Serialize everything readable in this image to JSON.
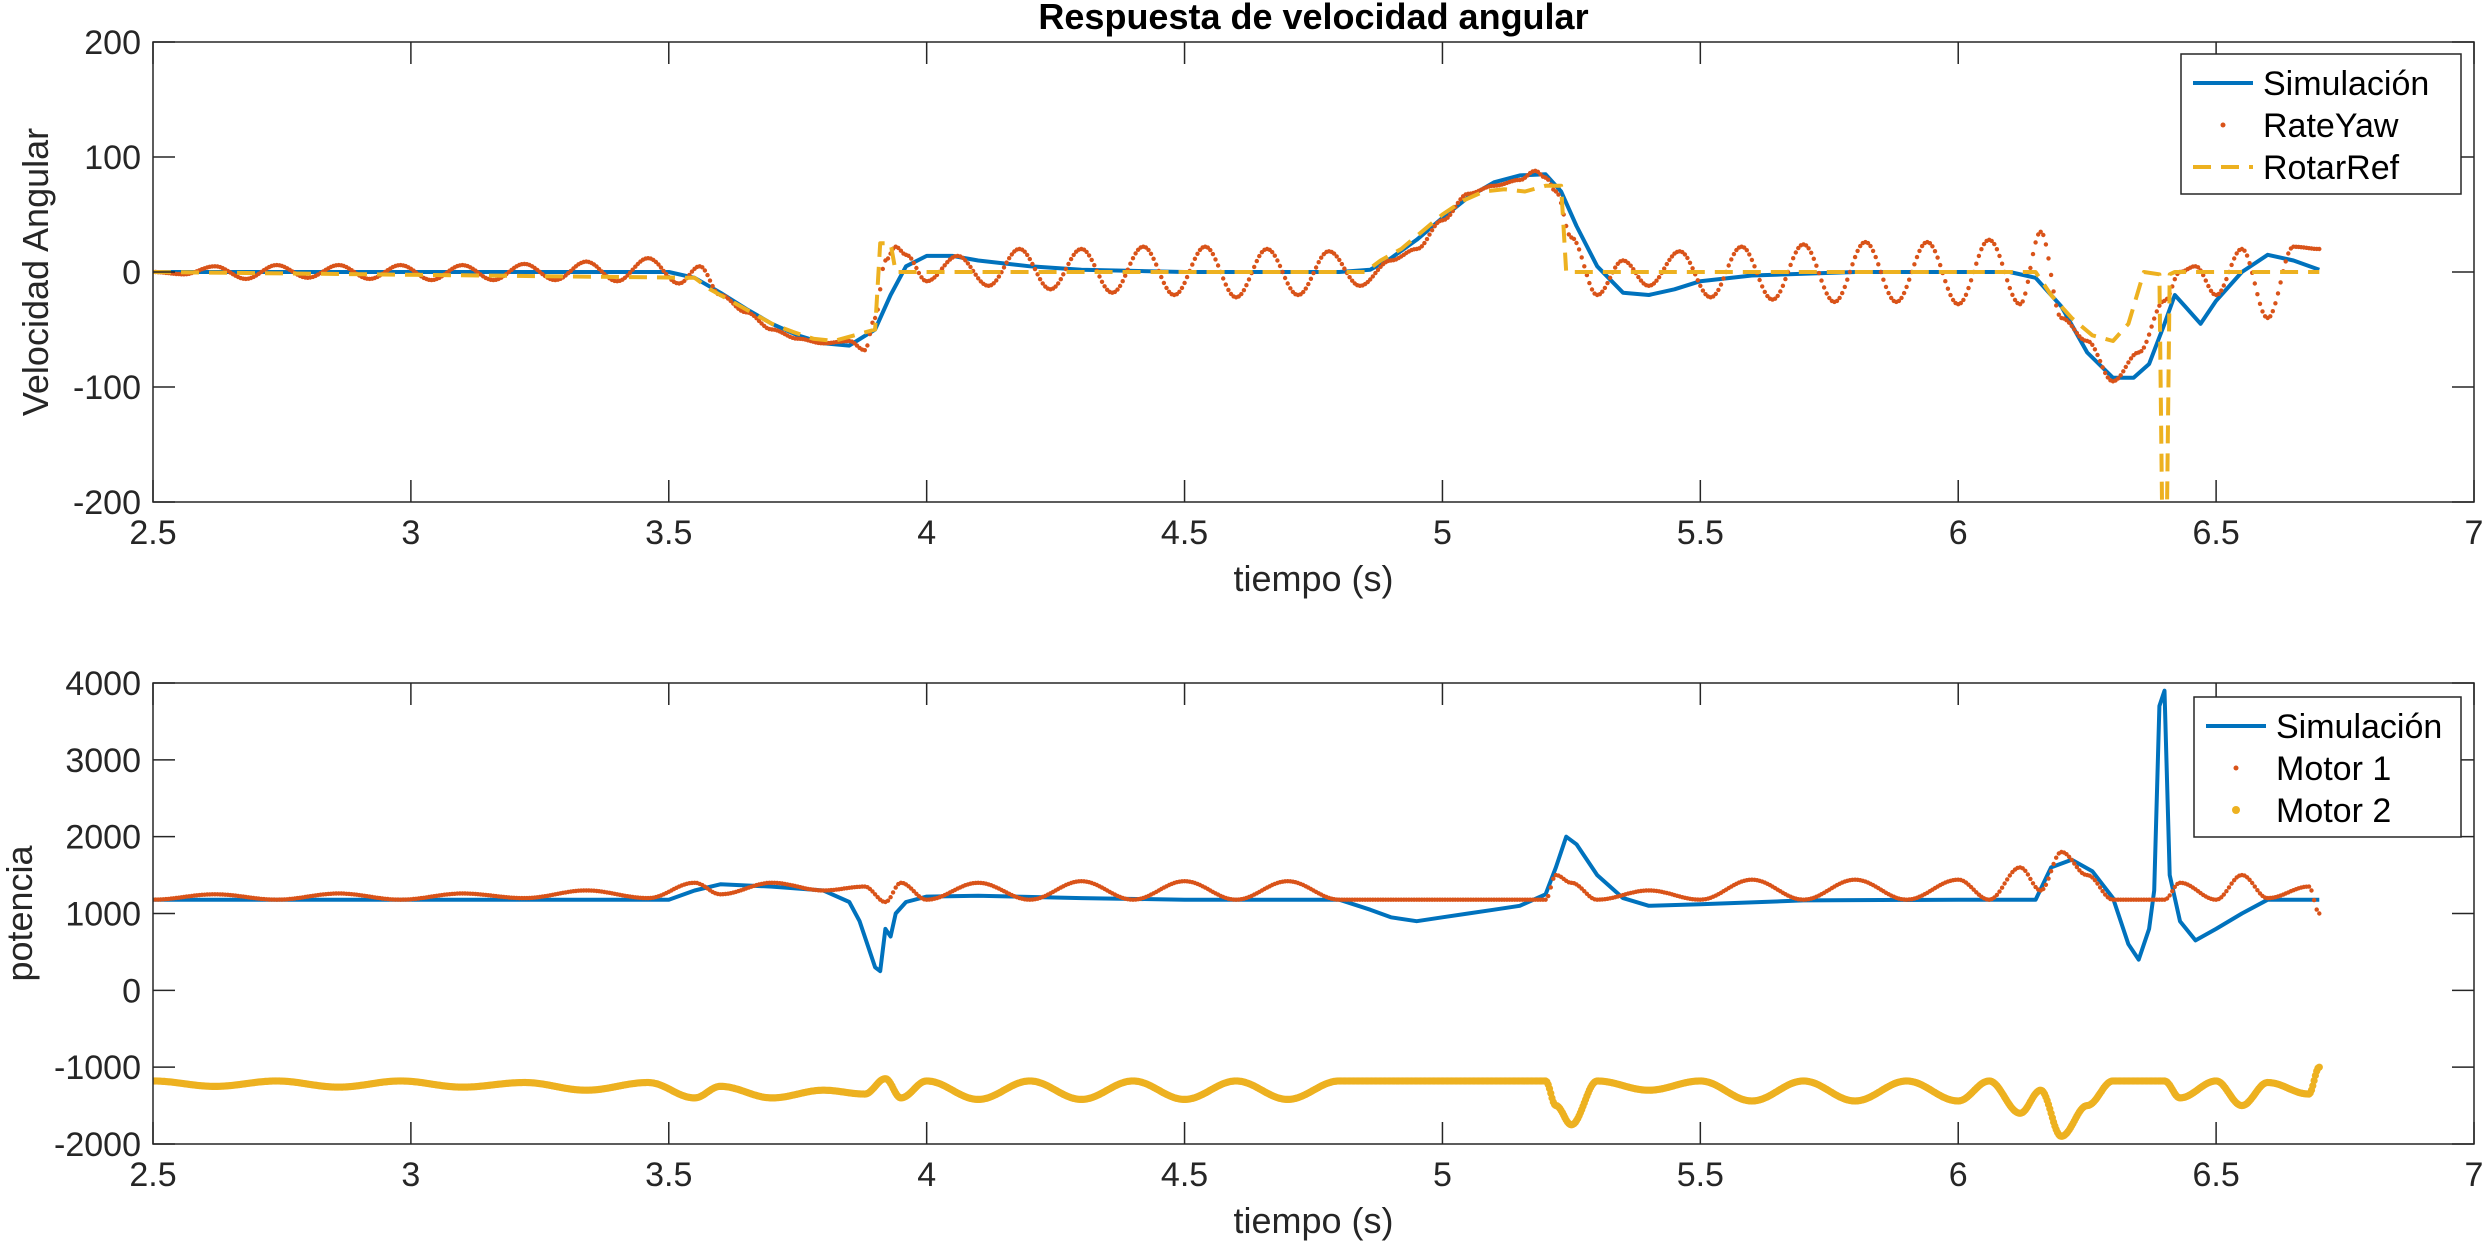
{
  "colors": {
    "blue": "#0072BD",
    "orange": "#D95319",
    "yellow": "#EDB120",
    "axis": "#262626"
  },
  "chart_data": [
    {
      "type": "line",
      "title": "Respuesta de velocidad angular",
      "xlabel": "tiempo (s)",
      "ylabel": "Velocidad Angular",
      "xlim": [
        2.5,
        7
      ],
      "ylim": [
        -200,
        200
      ],
      "xticks": [
        "2.5",
        "3",
        "3.5",
        "4",
        "4.5",
        "5",
        "5.5",
        "6",
        "6.5",
        "7"
      ],
      "yticks": [
        "200",
        "100",
        "0",
        "-100",
        "-200"
      ],
      "grid": false,
      "legend_position": "top-right",
      "series": [
        {
          "name": "Simulación",
          "style": "solid",
          "color": "#0072BD",
          "x": [
            2.5,
            3.5,
            3.55,
            3.6,
            3.65,
            3.7,
            3.75,
            3.8,
            3.85,
            3.9,
            3.93,
            3.96,
            4.0,
            4.05,
            4.1,
            4.2,
            4.3,
            4.4,
            4.5,
            4.6,
            4.7,
            4.8,
            4.86,
            4.9,
            4.95,
            5.0,
            5.05,
            5.1,
            5.15,
            5.2,
            5.23,
            5.26,
            5.3,
            5.35,
            5.4,
            5.45,
            5.5,
            5.6,
            5.8,
            6.0,
            6.1,
            6.15,
            6.2,
            6.25,
            6.3,
            6.34,
            6.37,
            6.4,
            6.42,
            6.44,
            6.47,
            6.5,
            6.55,
            6.6,
            6.65,
            6.7
          ],
          "y": [
            0,
            0,
            -5,
            -18,
            -32,
            -45,
            -55,
            -62,
            -64,
            -50,
            -20,
            5,
            14,
            14,
            10,
            5,
            2,
            1,
            0,
            0,
            0,
            0,
            2,
            12,
            28,
            47,
            65,
            78,
            84,
            85,
            70,
            40,
            5,
            -18,
            -20,
            -15,
            -8,
            -3,
            0,
            0,
            0,
            -5,
            -30,
            -70,
            -92,
            -92,
            -80,
            -45,
            -20,
            -30,
            -45,
            -25,
            0,
            15,
            10,
            2
          ]
        },
        {
          "name": "RateYaw",
          "style": "dots",
          "color": "#D95319",
          "x": [
            2.5,
            2.56,
            2.62,
            2.68,
            2.74,
            2.8,
            2.86,
            2.92,
            2.98,
            3.04,
            3.1,
            3.16,
            3.22,
            3.28,
            3.34,
            3.4,
            3.46,
            3.52,
            3.56,
            3.6,
            3.65,
            3.7,
            3.75,
            3.8,
            3.85,
            3.88,
            3.9,
            3.92,
            3.94,
            3.96,
            4.0,
            4.06,
            4.12,
            4.18,
            4.24,
            4.3,
            4.36,
            4.42,
            4.48,
            4.54,
            4.6,
            4.66,
            4.72,
            4.78,
            4.84,
            4.9,
            4.95,
            5.0,
            5.05,
            5.1,
            5.15,
            5.18,
            5.2,
            5.22,
            5.25,
            5.3,
            5.35,
            5.4,
            5.46,
            5.52,
            5.58,
            5.64,
            5.7,
            5.76,
            5.82,
            5.88,
            5.94,
            6.0,
            6.06,
            6.12,
            6.16,
            6.2,
            6.25,
            6.3,
            6.35,
            6.4,
            6.43,
            6.46,
            6.5,
            6.55,
            6.6,
            6.65,
            6.7
          ],
          "y": [
            0,
            -2,
            5,
            -6,
            6,
            -5,
            6,
            -6,
            6,
            -7,
            6,
            -7,
            7,
            -7,
            9,
            -8,
            12,
            -10,
            5,
            -20,
            -35,
            -50,
            -58,
            -62,
            -60,
            -68,
            -40,
            10,
            22,
            15,
            -8,
            14,
            -12,
            20,
            -15,
            20,
            -18,
            22,
            -20,
            22,
            -22,
            20,
            -20,
            18,
            -12,
            10,
            20,
            45,
            68,
            75,
            80,
            88,
            82,
            70,
            30,
            -20,
            10,
            -12,
            18,
            -22,
            22,
            -24,
            24,
            -26,
            26,
            -26,
            26,
            -28,
            28,
            -28,
            35,
            -40,
            -60,
            -95,
            -70,
            -25,
            0,
            5,
            -20,
            20,
            -40,
            22,
            20
          ]
        },
        {
          "name": "RotarRef",
          "style": "dashed",
          "color": "#EDB120",
          "x": [
            2.5,
            3.55,
            3.58,
            3.62,
            3.66,
            3.7,
            3.74,
            3.78,
            3.82,
            3.86,
            3.9,
            3.91,
            3.93,
            3.94,
            4.0,
            4.85,
            4.88,
            4.92,
            4.96,
            5.0,
            5.04,
            5.08,
            5.12,
            5.16,
            5.2,
            5.23,
            5.24,
            5.25,
            6.15,
            6.18,
            6.22,
            6.26,
            6.3,
            6.33,
            6.36,
            6.39,
            6.395,
            6.4,
            6.405,
            6.41,
            6.42,
            6.7
          ],
          "y": [
            0,
            -5,
            -15,
            -25,
            -35,
            -45,
            -52,
            -58,
            -60,
            -55,
            -50,
            25,
            25,
            0,
            0,
            0,
            10,
            20,
            35,
            50,
            62,
            70,
            72,
            70,
            75,
            75,
            0,
            0,
            0,
            -20,
            -40,
            -55,
            -60,
            -45,
            0,
            -2,
            -200,
            -200,
            -200,
            -2,
            0,
            0
          ]
        }
      ]
    },
    {
      "type": "line",
      "title": "",
      "xlabel": "tiempo (s)",
      "ylabel": "potencia",
      "xlim": [
        2.5,
        7
      ],
      "ylim": [
        -2000,
        4000
      ],
      "xticks": [
        "2.5",
        "3",
        "3.5",
        "4",
        "4.5",
        "5",
        "5.5",
        "6",
        "6.5",
        "7"
      ],
      "yticks": [
        "4000",
        "3000",
        "2000",
        "1000",
        "0",
        "-1000",
        "-2000"
      ],
      "grid": false,
      "legend_position": "top-right",
      "series": [
        {
          "name": "Simulación",
          "style": "solid",
          "color": "#0072BD",
          "x": [
            2.5,
            3.5,
            3.55,
            3.6,
            3.7,
            3.8,
            3.85,
            3.87,
            3.9,
            3.91,
            3.92,
            3.93,
            3.94,
            3.96,
            4.0,
            4.1,
            4.3,
            4.5,
            4.8,
            4.86,
            4.9,
            4.95,
            5.0,
            5.05,
            5.1,
            5.15,
            5.2,
            5.22,
            5.24,
            5.26,
            5.3,
            5.35,
            5.4,
            5.5,
            5.7,
            6.0,
            6.15,
            6.18,
            6.22,
            6.26,
            6.3,
            6.33,
            6.35,
            6.37,
            6.38,
            6.39,
            6.4,
            6.41,
            6.43,
            6.46,
            6.5,
            6.55,
            6.6,
            6.7
          ],
          "y": [
            1180,
            1180,
            1300,
            1380,
            1350,
            1300,
            1150,
            900,
            300,
            250,
            800,
            700,
            1000,
            1150,
            1220,
            1230,
            1200,
            1180,
            1180,
            1050,
            950,
            900,
            950,
            1000,
            1050,
            1100,
            1250,
            1600,
            2000,
            1900,
            1500,
            1200,
            1100,
            1120,
            1170,
            1180,
            1180,
            1600,
            1700,
            1550,
            1200,
            600,
            400,
            800,
            1300,
            3700,
            3900,
            1500,
            900,
            650,
            800,
            1000,
            1180,
            1180
          ]
        },
        {
          "name": "Motor 1",
          "style": "dots",
          "color": "#D95319",
          "x": [
            2.5,
            2.62,
            2.74,
            2.86,
            2.98,
            3.1,
            3.22,
            3.34,
            3.46,
            3.55,
            3.6,
            3.7,
            3.8,
            3.88,
            3.92,
            3.95,
            4.0,
            4.1,
            4.2,
            4.3,
            4.4,
            4.5,
            4.6,
            4.7,
            4.8,
            4.86,
            4.9,
            5.0,
            5.1,
            5.2,
            5.22,
            5.25,
            5.3,
            5.4,
            5.5,
            5.6,
            5.7,
            5.8,
            5.9,
            6.0,
            6.06,
            6.12,
            6.16,
            6.2,
            6.25,
            6.3,
            6.4,
            6.43,
            6.5,
            6.55,
            6.6,
            6.68,
            6.7
          ],
          "y": [
            1180,
            1250,
            1180,
            1260,
            1180,
            1260,
            1200,
            1300,
            1200,
            1400,
            1250,
            1400,
            1300,
            1350,
            1150,
            1400,
            1180,
            1400,
            1180,
            1420,
            1180,
            1420,
            1180,
            1420,
            1180,
            1180,
            1180,
            1180,
            1180,
            1180,
            1500,
            1400,
            1180,
            1300,
            1180,
            1440,
            1180,
            1440,
            1180,
            1440,
            1180,
            1600,
            1300,
            1800,
            1500,
            1180,
            1180,
            1400,
            1180,
            1500,
            1200,
            1350,
            1000
          ]
        },
        {
          "name": "Motor 2",
          "style": "dots",
          "color": "#EDB120",
          "x": [
            2.5,
            2.62,
            2.74,
            2.86,
            2.98,
            3.1,
            3.22,
            3.34,
            3.46,
            3.55,
            3.6,
            3.7,
            3.8,
            3.88,
            3.92,
            3.95,
            4.0,
            4.1,
            4.2,
            4.3,
            4.4,
            4.5,
            4.6,
            4.7,
            4.8,
            4.86,
            4.9,
            5.0,
            5.1,
            5.2,
            5.22,
            5.25,
            5.3,
            5.4,
            5.5,
            5.6,
            5.7,
            5.8,
            5.9,
            6.0,
            6.06,
            6.12,
            6.16,
            6.2,
            6.25,
            6.3,
            6.4,
            6.43,
            6.5,
            6.55,
            6.6,
            6.68,
            6.7
          ],
          "y": [
            -1180,
            -1250,
            -1180,
            -1260,
            -1180,
            -1260,
            -1200,
            -1300,
            -1200,
            -1400,
            -1250,
            -1400,
            -1300,
            -1350,
            -1150,
            -1400,
            -1180,
            -1420,
            -1180,
            -1420,
            -1180,
            -1420,
            -1180,
            -1420,
            -1180,
            -1180,
            -1180,
            -1180,
            -1180,
            -1180,
            -1500,
            -1750,
            -1180,
            -1300,
            -1180,
            -1440,
            -1180,
            -1440,
            -1180,
            -1440,
            -1180,
            -1600,
            -1300,
            -1900,
            -1500,
            -1180,
            -1180,
            -1400,
            -1180,
            -1500,
            -1200,
            -1350,
            -1000
          ]
        }
      ]
    }
  ]
}
